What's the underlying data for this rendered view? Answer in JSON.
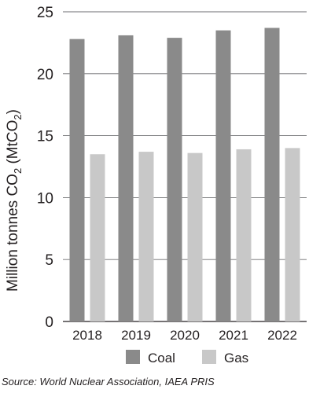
{
  "chart_data": {
    "type": "bar",
    "categories": [
      "2018",
      "2019",
      "2020",
      "2021",
      "2022"
    ],
    "series": [
      {
        "name": "Coal",
        "color": "#8a8a8a",
        "values": [
          22.8,
          23.1,
          22.9,
          23.5,
          23.7
        ]
      },
      {
        "name": "Gas",
        "color": "#c8c8c8",
        "values": [
          13.5,
          13.7,
          13.6,
          13.9,
          14.0
        ]
      }
    ],
    "yticks": [
      "0",
      "5",
      "10",
      "15",
      "20",
      "25"
    ],
    "ylim": [
      0,
      25
    ],
    "ylabel_main": "Million tonnes CO",
    "ylabel_sub": "2",
    "ylabel_paren": " (MtCO",
    "ylabel_paren_sub": "2",
    "ylabel_close": ")",
    "grid": true,
    "legend_position": "bottom",
    "source": "Source: World Nuclear Association, IAEA PRIS"
  }
}
